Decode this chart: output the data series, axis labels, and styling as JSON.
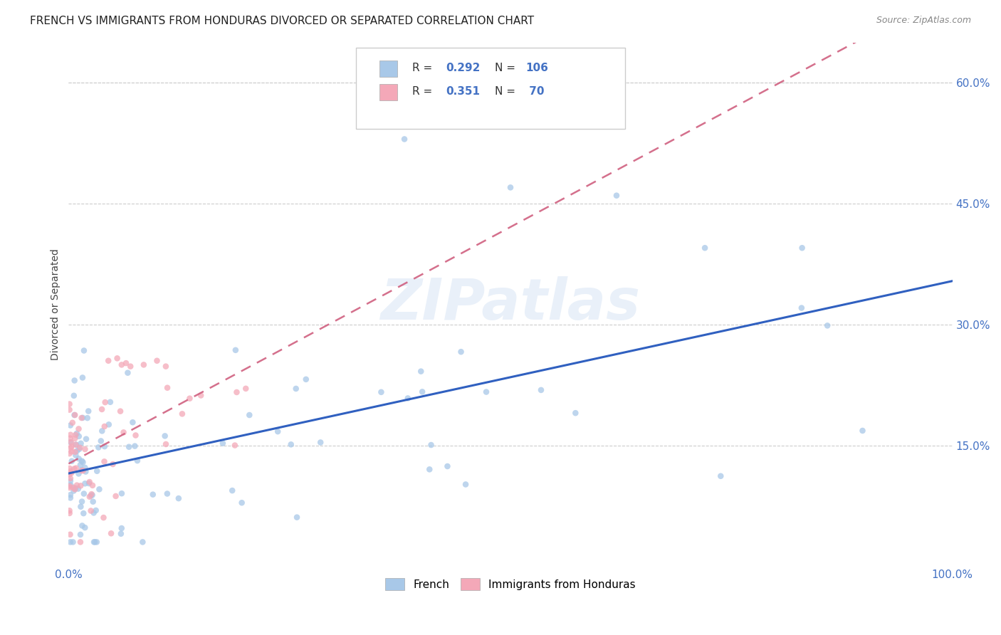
{
  "title": "FRENCH VS IMMIGRANTS FROM HONDURAS DIVORCED OR SEPARATED CORRELATION CHART",
  "source": "Source: ZipAtlas.com",
  "ylabel": "Divorced or Separated",
  "xlim": [
    0.0,
    1.0
  ],
  "ylim": [
    0.0,
    0.65
  ],
  "ytick_vals": [
    0.15,
    0.3,
    0.45,
    0.6
  ],
  "ytick_labels": [
    "15.0%",
    "30.0%",
    "45.0%",
    "60.0%"
  ],
  "xtick_vals": [
    0.0,
    0.2,
    0.4,
    0.6,
    0.8,
    1.0
  ],
  "xtick_labels": [
    "0.0%",
    "",
    "",
    "",
    "",
    "100.0%"
  ],
  "french_color": "#a8c8e8",
  "honduras_color": "#f4a8b8",
  "french_line_color": "#3060c0",
  "honduras_line_color": "#d06080",
  "axis_tick_color": "#4472c4",
  "legend_r1": "R = 0.292",
  "legend_n1": "N = 106",
  "legend_r2": "R = 0.351",
  "legend_n2": "N =  70",
  "legend_rn_color": "#4472c4",
  "legend_eq_color": "#333333",
  "watermark": "ZIPatlas",
  "background_color": "#ffffff",
  "grid_color": "#cccccc",
  "title_fontsize": 11,
  "source_fontsize": 9,
  "tick_fontsize": 11,
  "ylabel_fontsize": 10,
  "scatter_size": 38,
  "scatter_alpha": 0.75,
  "french_trend_intercept": 0.118,
  "french_trend_slope": 0.155,
  "honduras_trend_intercept": 0.118,
  "honduras_trend_slope": 0.9
}
